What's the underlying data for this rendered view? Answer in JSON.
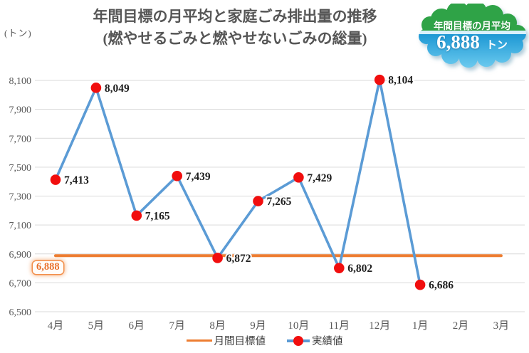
{
  "header": {
    "unit_label": "(トン)",
    "title_line1": "年間目標の月平均と家庭ごみ排出量の推移",
    "title_line2": "(燃やせるごみと燃やせないごみの総量)"
  },
  "badge": {
    "label": "年間目標の月平均",
    "value": "6,888",
    "unit": "トン",
    "colors": {
      "green": "#2FA347",
      "divider": "#D9F1FB",
      "blue_top": "#1D98D4",
      "blue_bottom": "#6BCAEF"
    }
  },
  "chart_data": {
    "type": "line",
    "categories": [
      "4月",
      "5月",
      "6月",
      "7月",
      "8月",
      "9月",
      "10月",
      "11月",
      "12月",
      "1月",
      "2月",
      "3月"
    ],
    "series": [
      {
        "name": "月間目標値",
        "color": "#ED7D31",
        "width": 4,
        "marker": false,
        "values": [
          6888,
          6888,
          6888,
          6888,
          6888,
          6888,
          6888,
          6888,
          6888,
          6888,
          6888,
          6888
        ],
        "labels": null
      },
      {
        "name": "実績値",
        "color": "#5B9BD5",
        "width": 3.6,
        "marker": true,
        "marker_color": "#F10E0E",
        "values": [
          7413,
          8049,
          7165,
          7439,
          6872,
          7265,
          7429,
          6802,
          8104,
          6686,
          null,
          null
        ],
        "labels": [
          "7,413",
          "8,049",
          "7,165",
          "7,439",
          "6,872",
          "7,265",
          "7,429",
          "6,802",
          "8,104",
          "6,686",
          null,
          null
        ]
      }
    ],
    "target_annotation": "6,888",
    "ylim": [
      6500,
      8100
    ],
    "ytick_step": 200,
    "ytick_labels": [
      "6,500",
      "6,700",
      "6,900",
      "7,100",
      "7,300",
      "7,500",
      "7,700",
      "7,900",
      "8,100"
    ],
    "grid": "horizontal",
    "gridline_color": "#D9D9D9",
    "axis_label_color": "#595959",
    "data_label_color": "#1f1f1f",
    "legend_position": "bottom"
  },
  "legend": {
    "items": [
      {
        "label": "月間目標値"
      },
      {
        "label": "実績値"
      }
    ]
  }
}
